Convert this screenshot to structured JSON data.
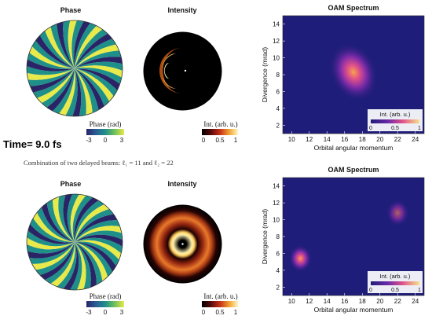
{
  "time_label": "Time= 9.0 fs",
  "caption": "Combination of two delayed beams: ℓ₁ = 11 and ℓ₂ = 22",
  "colors": {
    "phase_low": "#2a2466",
    "phase_mid": "#1f8f8a",
    "phase_high": "#e8e94a",
    "intensity_low": "#000000",
    "intensity_high": "#fff6c4",
    "spectrum_bg": "#1f1d7a"
  },
  "rows": [
    {
      "phase": {
        "title": "Phase",
        "colorbar_label": "Phase (rad)",
        "ticks": [
          "-3",
          "0",
          "3"
        ]
      },
      "intensity": {
        "title": "Intensity",
        "colorbar_label": "Int. (arb. u.)",
        "ticks": [
          "0",
          "0.5",
          "1"
        ]
      }
    },
    {
      "phase": {
        "title": "Phase",
        "colorbar_label": "Phase (rad)",
        "ticks": [
          "-3",
          "0",
          "3"
        ]
      },
      "intensity": {
        "title": "Intensity",
        "colorbar_label": "Int. (arb. u.)",
        "ticks": [
          "0",
          "0.5",
          "1"
        ]
      }
    }
  ],
  "chart_data": [
    {
      "type": "heatmap",
      "title": "OAM Spectrum",
      "xlabel": "Orbital angular momentum",
      "ylabel": "Divergence (mrad)",
      "xlim": [
        9,
        25
      ],
      "ylim": [
        1,
        15
      ],
      "xticks": [
        10,
        12,
        14,
        16,
        18,
        20,
        22,
        24
      ],
      "yticks": [
        2,
        4,
        6,
        8,
        10,
        12,
        14
      ],
      "colorbar": {
        "label": "Int. (arb. u.)",
        "ticks": [
          "0",
          "0.5",
          "1"
        ]
      },
      "peaks": [
        {
          "x": 17,
          "y": 8.3,
          "intensity": 1.0
        }
      ]
    },
    {
      "type": "heatmap",
      "title": "OAM Spectrum",
      "xlabel": "Orbital angular momentum",
      "ylabel": "Divergence (mrad)",
      "xlim": [
        9,
        25
      ],
      "ylim": [
        1,
        15
      ],
      "xticks": [
        10,
        12,
        14,
        16,
        18,
        20,
        22,
        24
      ],
      "yticks": [
        2,
        4,
        6,
        8,
        10,
        12,
        14
      ],
      "colorbar": {
        "label": "Int. (arb. u.)",
        "ticks": [
          "0",
          "0.5",
          "1"
        ]
      },
      "peaks": [
        {
          "x": 11,
          "y": 5.4,
          "intensity": 1.0
        },
        {
          "x": 22,
          "y": 10.8,
          "intensity": 0.6
        }
      ]
    }
  ]
}
